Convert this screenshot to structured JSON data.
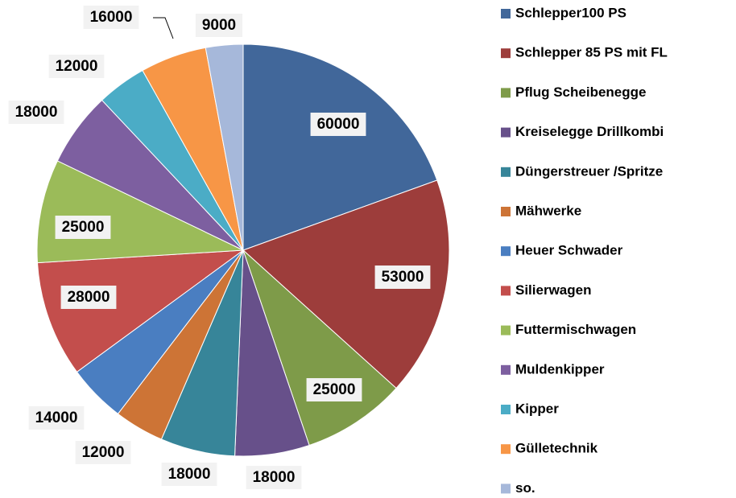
{
  "chart_data": {
    "type": "pie",
    "categories": [
      "Schlepper100 PS",
      "Schlepper 85 PS mit FL",
      "Pflug Scheibenegge",
      "Kreiselegge Drillkombi",
      "Düngerstreuer /Spritze",
      "Mähwerke",
      "Heuer Schwader",
      "Silierwagen",
      "Futtermischwagen",
      "Muldenkipper",
      "Kipper",
      "Gülletechnik",
      "so."
    ],
    "values": [
      60000,
      53000,
      25000,
      18000,
      18000,
      12000,
      14000,
      28000,
      25000,
      18000,
      12000,
      16000,
      9000
    ],
    "colors": [
      "#41679A",
      "#9D3D3B",
      "#7E9B49",
      "#67508A",
      "#378599",
      "#CD7436",
      "#4A7EC1",
      "#C34E4C",
      "#9BBB59",
      "#7D5FA0",
      "#4BACC6",
      "#F79646",
      "#A6B8DA"
    ],
    "legend": "right"
  }
}
